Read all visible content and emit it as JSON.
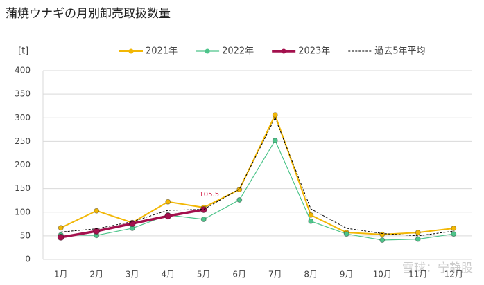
{
  "chart_data": {
    "type": "line",
    "title": "蒲焼ウナギの月別卸売取扱数量",
    "y_axis_label": "[t]",
    "categories": [
      "1月",
      "2月",
      "3月",
      "4月",
      "5月",
      "6月",
      "7月",
      "8月",
      "9月",
      "10月",
      "11月",
      "12月"
    ],
    "series": [
      {
        "name": "2021年",
        "color": "#f2b705",
        "marker": true,
        "line_width": 2,
        "values": [
          67,
          103,
          78,
          122,
          110,
          148,
          306,
          94,
          57,
          53,
          57,
          66
        ]
      },
      {
        "name": "2022年",
        "color": "#4dc48a",
        "marker": true,
        "line_width": 1.2,
        "values": [
          52,
          51,
          66,
          94,
          85,
          126,
          252,
          81,
          54,
          41,
          43,
          54
        ]
      },
      {
        "name": "2023年",
        "color": "#a3104d",
        "marker": true,
        "line_width": 3.5,
        "values": [
          47,
          60,
          76,
          92,
          105.5,
          null,
          null,
          null,
          null,
          null,
          null,
          null
        ],
        "value_labels": [
          null,
          null,
          null,
          null,
          "105.5",
          null,
          null,
          null,
          null,
          null,
          null,
          null
        ]
      },
      {
        "name": "過去5年平均",
        "color": "#000000",
        "marker": false,
        "dashed": true,
        "line_width": 1,
        "values": [
          58,
          65,
          80,
          104,
          106,
          149,
          300,
          107,
          66,
          55,
          50,
          60
        ]
      }
    ],
    "ylim": [
      0,
      400
    ],
    "yticks": [
      0,
      50,
      100,
      150,
      200,
      250,
      300,
      350,
      400
    ],
    "grid": true,
    "legend": "top",
    "watermark": "雪球：宁静股"
  }
}
